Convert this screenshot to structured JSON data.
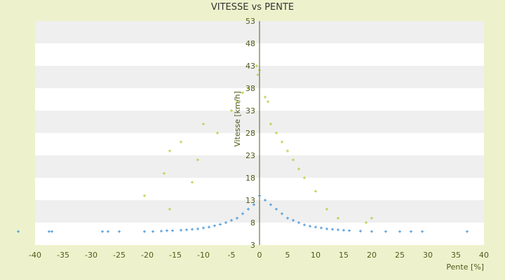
{
  "chart_data": {
    "type": "scatter",
    "title": "VITESSE vs PENTE",
    "xlabel": "Pente [%]",
    "ylabel": "Vitesse [km/h]",
    "xlim": [
      -40,
      40
    ],
    "ylim": [
      3,
      53
    ],
    "x_ticks": [
      -40,
      -35,
      -30,
      -25,
      -20,
      -15,
      -10,
      -5,
      0,
      5,
      10,
      15,
      20,
      25,
      30,
      35,
      40
    ],
    "y_ticks": [
      3,
      8,
      13,
      18,
      23,
      28,
      33,
      38,
      43,
      48,
      53
    ],
    "grid": "horizontal bands",
    "legend": "none",
    "colors": {
      "background": "#eef2cc",
      "plot_band_light": "#ffffff",
      "plot_band_dark": "#efefef",
      "series_primary": "#3b8fd6",
      "series_secondary": "#b6c832",
      "axis_text": "#4e5a1a"
    },
    "series": [
      {
        "color": "#3b8fd6",
        "marker": "plus",
        "description_points": [
          [
            -43,
            6
          ],
          [
            -37.5,
            6
          ],
          [
            -37,
            6
          ],
          [
            -28,
            6
          ],
          [
            -27,
            6
          ],
          [
            -25,
            6
          ],
          [
            -20.5,
            6
          ],
          [
            -19,
            6
          ],
          [
            -17.5,
            6.1
          ],
          [
            -16.5,
            6.2
          ],
          [
            -15.5,
            6.2
          ],
          [
            -14,
            6.3
          ],
          [
            -13,
            6.4
          ],
          [
            -12,
            6.5
          ],
          [
            -11,
            6.6
          ],
          [
            -10,
            6.8
          ],
          [
            -9,
            7
          ],
          [
            -8,
            7.3
          ],
          [
            -7,
            7.6
          ],
          [
            -6,
            8
          ],
          [
            -5,
            8.5
          ],
          [
            -4,
            9
          ],
          [
            -3,
            10
          ],
          [
            -2,
            11
          ],
          [
            -1,
            12
          ],
          [
            0,
            14
          ],
          [
            1,
            13
          ],
          [
            2,
            12
          ],
          [
            3,
            11
          ],
          [
            4,
            10
          ],
          [
            5,
            9
          ],
          [
            6,
            8.5
          ],
          [
            7,
            8
          ],
          [
            8,
            7.5
          ],
          [
            9,
            7.2
          ],
          [
            10,
            7
          ],
          [
            11,
            6.8
          ],
          [
            12,
            6.6
          ],
          [
            13,
            6.5
          ],
          [
            14,
            6.4
          ],
          [
            15,
            6.3
          ],
          [
            16,
            6.2
          ],
          [
            18,
            6.1
          ],
          [
            20,
            6
          ],
          [
            22.5,
            6
          ],
          [
            25,
            6
          ],
          [
            27,
            6
          ],
          [
            29,
            6
          ],
          [
            37,
            6
          ]
        ]
      },
      {
        "color": "#b6c832",
        "marker": "plus",
        "description_points": [
          [
            -20.5,
            14
          ],
          [
            -16,
            11
          ],
          [
            -17,
            19
          ],
          [
            -16,
            24
          ],
          [
            -14,
            26
          ],
          [
            -12,
            17
          ],
          [
            -11,
            22
          ],
          [
            -10,
            30
          ],
          [
            -7.5,
            28
          ],
          [
            -5,
            33
          ],
          [
            -4,
            35
          ],
          [
            -3,
            37
          ],
          [
            -2,
            38
          ],
          [
            -0.5,
            43
          ],
          [
            -0.3,
            41
          ],
          [
            0,
            42
          ],
          [
            1,
            36
          ],
          [
            1.5,
            35
          ],
          [
            2,
            30
          ],
          [
            3,
            28
          ],
          [
            4,
            26
          ],
          [
            5,
            24
          ],
          [
            6,
            22
          ],
          [
            7,
            20
          ],
          [
            8,
            18
          ],
          [
            10,
            15
          ],
          [
            12,
            11
          ],
          [
            14,
            9
          ],
          [
            19,
            8
          ],
          [
            20,
            9
          ]
        ]
      }
    ]
  }
}
